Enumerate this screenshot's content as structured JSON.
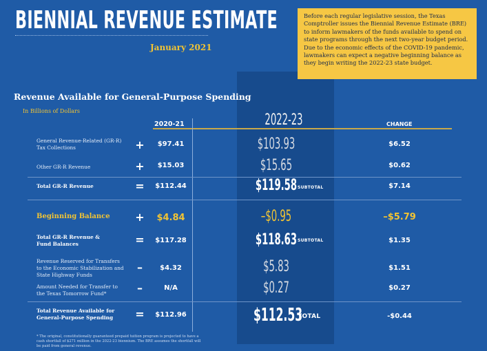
{
  "header": {
    "title": "BIENNIAL REVENUE ESTIMATE",
    "date": "January 2021"
  },
  "note": "Before each regular legislative session, the Texas Comptroller issues the Biennial Revenue Estimate (BRE) to inform lawmakers of the funds available to spend on state programs through the next two-year budget period. Due to the economic effects of the COVID-19 pandemic, lawmakers can expect a negative beginning balance as they begin writing the 2022-23 state budget.",
  "section": {
    "title": "Revenue Available for General-Purpose Spending",
    "units": "In Billions of Dollars"
  },
  "columns": {
    "c1": "2020-21",
    "c2": "2022-23",
    "c3": "CHANGE"
  },
  "rows": [
    {
      "label": "General Revenue-Related (GR-R) Tax Collections",
      "op": "+",
      "v1": "$97.41",
      "v2": "$103.93",
      "tag": "",
      "v3": "$6.52"
    },
    {
      "label": "Other GR-R Revenue",
      "op": "+",
      "v1": "$15.03",
      "v2": "$15.65",
      "tag": "",
      "v3": "$0.62"
    },
    {
      "label": "Total GR-R Revenue",
      "op": "=",
      "v1": "$112.44",
      "v2": "$119.58",
      "tag": "SUBTOTAL",
      "v3": "$7.14"
    },
    {
      "label": "Beginning Balance",
      "op": "+",
      "v1": "$4.84",
      "v2": "–$0.95",
      "tag": "",
      "v3": "–$5.79"
    },
    {
      "label": "Total GR-R Revenue & Fund Balances",
      "op": "=",
      "v1": "$117.28",
      "v2": "$118.63",
      "tag": "SUBTOTAL",
      "v3": "$1.35"
    },
    {
      "label": "Revenue Reserved for Transfers to the Economic Stabilization and State Highway Funds",
      "op": "–",
      "v1": "$4.32",
      "v2": "$5.83",
      "tag": "",
      "v3": "$1.51"
    },
    {
      "label": "Amount Needed for Transfer to the Texas Tomorrow Fund*",
      "op": "–",
      "v1": "N/A",
      "v2": "$0.27",
      "tag": "",
      "v3": "$0.27"
    },
    {
      "label": "Total Revenue Available for General-Purpose Spending",
      "op": "=",
      "v1": "$112.96",
      "v2": "$112.53",
      "tag": "TOTAL",
      "v3": "-$0.44"
    }
  ],
  "footnote": "* The original, constitutionally guaranteed prepaid tuition program is projected to have a cash shortfall of $271 million in the 2022-23 biennium. The BRE assumes the shortfall will be paid from general revenue."
}
